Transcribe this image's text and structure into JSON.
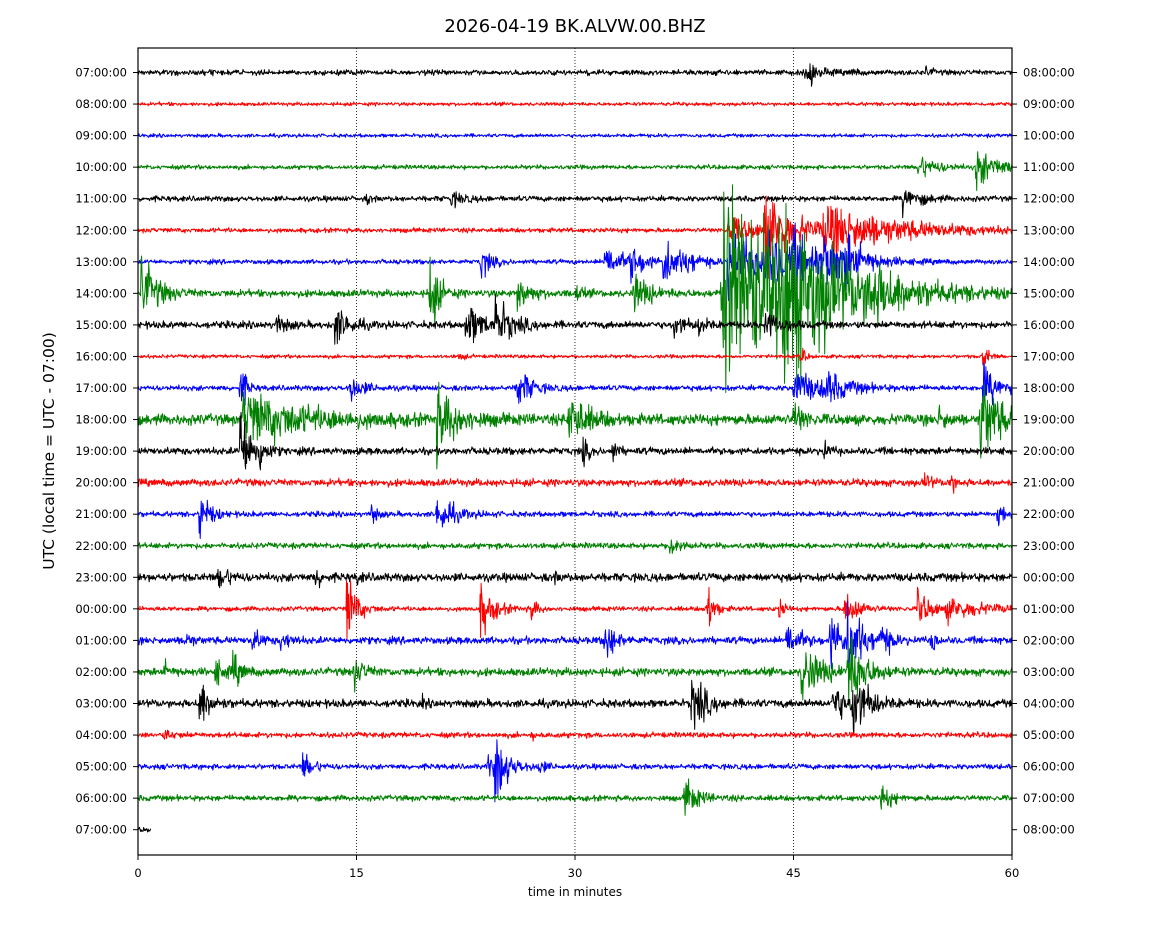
{
  "chart_data": {
    "type": "line",
    "title": "2026-04-19 BK.ALVW.00.BHZ",
    "xlabel": "time in minutes",
    "ylabel": "UTC (local time = UTC - 07:00)",
    "xlim": [
      0,
      60
    ],
    "x_ticks": [
      0,
      15,
      30,
      45,
      60
    ],
    "grid": "vertical dotted lines at 15, 30, 45",
    "trace_colors": [
      "#000000",
      "#ff0000",
      "#0000ff",
      "#008000"
    ],
    "left_labels": [
      "07:00:00",
      "08:00:00",
      "09:00:00",
      "10:00:00",
      "11:00:00",
      "12:00:00",
      "13:00:00",
      "14:00:00",
      "15:00:00",
      "16:00:00",
      "17:00:00",
      "18:00:00",
      "19:00:00",
      "20:00:00",
      "21:00:00",
      "22:00:00",
      "23:00:00",
      "00:00:00",
      "01:00:00",
      "02:00:00",
      "03:00:00",
      "04:00:00",
      "05:00:00",
      "06:00:00",
      "07:00:00"
    ],
    "right_labels": [
      "08:00:00",
      "09:00:00",
      "10:00:00",
      "11:00:00",
      "12:00:00",
      "13:00:00",
      "14:00:00",
      "15:00:00",
      "16:00:00",
      "17:00:00",
      "18:00:00",
      "19:00:00",
      "20:00:00",
      "21:00:00",
      "22:00:00",
      "23:00:00",
      "00:00:00",
      "01:00:00",
      "02:00:00",
      "03:00:00",
      "04:00:00",
      "05:00:00",
      "06:00:00",
      "07:00:00",
      "08:00:00"
    ],
    "traces": [
      {
        "noise": 1.5,
        "events": [
          [
            45.8,
            9,
            0.6
          ],
          [
            49,
            2,
            0.3
          ],
          [
            54,
            3,
            0.4
          ]
        ]
      },
      {
        "noise": 1.0,
        "events": []
      },
      {
        "noise": 1.0,
        "events": []
      },
      {
        "noise": 1.2,
        "events": [
          [
            53.5,
            7,
            1.2
          ],
          [
            57.5,
            11,
            1.5
          ]
        ]
      },
      {
        "noise": 1.5,
        "events": [
          [
            15.7,
            3,
            0.3
          ],
          [
            21.5,
            4,
            0.8
          ],
          [
            52.5,
            8,
            1.0
          ]
        ]
      },
      {
        "noise": 1.3,
        "events": [
          [
            40.5,
            8,
            2.0
          ],
          [
            43,
            22,
            2.0
          ],
          [
            47,
            14,
            5.0
          ]
        ]
      },
      {
        "noise": 1.3,
        "events": [
          [
            23.5,
            10,
            0.6
          ],
          [
            32,
            12,
            1.0
          ],
          [
            33.7,
            10,
            1.0
          ],
          [
            36,
            16,
            1.0
          ],
          [
            37.5,
            5,
            1.0
          ],
          [
            40.5,
            18,
            2.5
          ],
          [
            43,
            12,
            2.0
          ],
          [
            45,
            10,
            2.0
          ],
          [
            47,
            12,
            1.5
          ],
          [
            48.5,
            12,
            1.0
          ]
        ]
      },
      {
        "noise": 2.0,
        "events": [
          [
            0.2,
            20,
            1.0
          ],
          [
            20,
            30,
            0.5
          ],
          [
            26,
            10,
            0.8
          ],
          [
            30,
            5,
            0.4
          ],
          [
            34,
            12,
            1.0
          ],
          [
            40,
            65,
            5.0
          ],
          [
            44,
            35,
            3.0
          ],
          [
            50,
            10,
            1.5
          ]
        ]
      },
      {
        "noise": 2.0,
        "events": [
          [
            9.5,
            7,
            0.5
          ],
          [
            13.5,
            12,
            0.8
          ],
          [
            22.5,
            14,
            1.0
          ],
          [
            24.5,
            14,
            1.0
          ],
          [
            36.8,
            8,
            0.6
          ],
          [
            38.5,
            6,
            0.5
          ],
          [
            43,
            8,
            1.0
          ]
        ]
      },
      {
        "noise": 1.0,
        "events": [
          [
            22,
            3,
            0.3
          ],
          [
            45.5,
            9,
            0.2
          ],
          [
            58,
            10,
            0.3
          ]
        ]
      },
      {
        "noise": 1.5,
        "events": [
          [
            7,
            20,
            0.3
          ],
          [
            14.5,
            8,
            0.8
          ],
          [
            26,
            14,
            0.8
          ],
          [
            45,
            12,
            1.5
          ],
          [
            47,
            8,
            1.5
          ],
          [
            58,
            12,
            1.2
          ]
        ]
      },
      {
        "noise": 3.0,
        "events": [
          [
            7.2,
            16,
            4.0
          ],
          [
            20.5,
            20,
            1.2
          ],
          [
            29.5,
            16,
            1.2
          ],
          [
            45,
            10,
            0.6
          ],
          [
            55,
            8,
            0.4
          ],
          [
            57.8,
            26,
            1.2
          ]
        ]
      },
      {
        "noise": 2.0,
        "events": [
          [
            7,
            30,
            0.6
          ],
          [
            8.2,
            12,
            0.4
          ],
          [
            30.5,
            10,
            0.3
          ],
          [
            32.5,
            8,
            0.3
          ],
          [
            47,
            8,
            0.3
          ]
        ]
      },
      {
        "noise": 2.0,
        "events": [
          [
            54,
            5,
            0.4
          ],
          [
            55.7,
            9,
            0.3
          ]
        ]
      },
      {
        "noise": 1.5,
        "events": [
          [
            4.2,
            16,
            0.6
          ],
          [
            16,
            8,
            0.3
          ],
          [
            20.5,
            12,
            1.0
          ],
          [
            59,
            9,
            0.4
          ]
        ]
      },
      {
        "noise": 1.6,
        "events": [
          [
            36.5,
            8,
            0.5
          ]
        ]
      },
      {
        "noise": 2.3,
        "events": [
          [
            5.5,
            8,
            0.6
          ],
          [
            12.2,
            8,
            0.3
          ],
          [
            15,
            3,
            0.3
          ],
          [
            28.5,
            3,
            0.3
          ]
        ]
      },
      {
        "noise": 1.3,
        "events": [
          [
            14.3,
            24,
            0.6
          ],
          [
            23.5,
            16,
            0.8
          ],
          [
            27,
            9,
            0.3
          ],
          [
            39,
            20,
            0.4
          ],
          [
            44,
            7,
            0.3
          ],
          [
            48.5,
            12,
            0.8
          ],
          [
            53.5,
            12,
            0.8
          ],
          [
            55.5,
            6,
            2.5
          ]
        ]
      },
      {
        "noise": 2.0,
        "events": [
          [
            3.2,
            5,
            0.4
          ],
          [
            7.8,
            8,
            0.5
          ],
          [
            9.8,
            6,
            0.5
          ],
          [
            32,
            14,
            0.6
          ],
          [
            44.5,
            12,
            0.8
          ],
          [
            47.5,
            16,
            1.0
          ],
          [
            48.7,
            18,
            1.0
          ],
          [
            51,
            9,
            0.5
          ],
          [
            54.5,
            12,
            0.2
          ]
        ]
      },
      {
        "noise": 2.2,
        "events": [
          [
            1.8,
            5,
            0.4
          ],
          [
            5.3,
            8,
            0.5
          ],
          [
            6.5,
            10,
            0.5
          ],
          [
            14.8,
            10,
            0.6
          ],
          [
            45.5,
            18,
            1.2
          ],
          [
            48.7,
            25,
            1.0
          ]
        ]
      },
      {
        "noise": 2.2,
        "events": [
          [
            4.2,
            16,
            0.6
          ],
          [
            19.5,
            3,
            0.2
          ],
          [
            38,
            20,
            0.8
          ],
          [
            47.7,
            16,
            0.6
          ],
          [
            49,
            22,
            1.0
          ]
        ]
      },
      {
        "noise": 1.5,
        "events": [
          [
            1.8,
            3,
            0.6
          ],
          [
            27,
            2,
            0.3
          ]
        ]
      },
      {
        "noise": 1.5,
        "events": [
          [
            11.3,
            9,
            0.6
          ],
          [
            24,
            7,
            0.6
          ],
          [
            24.5,
            20,
            0.8
          ],
          [
            27.5,
            4,
            0.4
          ]
        ]
      },
      {
        "noise": 1.6,
        "events": [
          [
            37.5,
            12,
            0.8
          ],
          [
            51,
            9,
            0.6
          ]
        ]
      },
      {
        "noise": 1.5,
        "events": []
      }
    ],
    "last_trace_end_minute": 0.9
  }
}
